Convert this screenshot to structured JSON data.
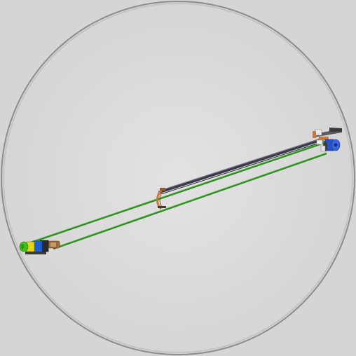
{
  "viewer": {
    "background_color": "#dadada",
    "ring_color": "#8c8c8c",
    "ring_inner_color": "#bdbdbd"
  },
  "model": {
    "conveyor_belt_color": "#2e8b1f",
    "belt_highlight_color": "#4cb33a",
    "rail_color": "#3a3a4a",
    "rail_highlight_color": "#7a7a8c",
    "support_bracket_color": "#c8783a",
    "drive_motor_colors": [
      "#1f5fd6",
      "#e6d21a",
      "#3bc41a",
      "#2a2a2a"
    ],
    "tail_motor_colors": [
      "#2850c8",
      "#c8783a",
      "#e9e9e9",
      "#3a3a3a"
    ]
  }
}
